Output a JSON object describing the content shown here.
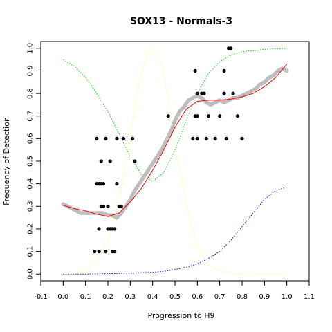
{
  "chart_data": {
    "type": "scatter",
    "title": "SOX13 - Normals-3",
    "xlabel": "Progression to H9",
    "ylabel": "Frequency of Detection",
    "xlim": [
      -0.1,
      1.1
    ],
    "ylim": [
      -0.03,
      1.03
    ],
    "x_ticks": [
      "-0.1",
      "0.0",
      "0.1",
      "0.2",
      "0.3",
      "0.4",
      "0.5",
      "0.6",
      "0.7",
      "0.8",
      "0.9",
      "1.0",
      "1.1"
    ],
    "y_ticks": [
      "0.0",
      "0.1",
      "0.2",
      "0.3",
      "0.4",
      "0.5",
      "0.6",
      "0.7",
      "0.8",
      "0.9",
      "1.0"
    ],
    "grid": false,
    "legend": "none",
    "colors": {
      "points": "#000000",
      "smooth_band": "#bebebe",
      "fit_line": "#ff0000",
      "green_dotted": "#00dd00",
      "yellow_dotted": "#ffff66",
      "blue_dotted": "#0000ff"
    },
    "series": [
      {
        "style": "black-points",
        "x": [
          0.14,
          0.15,
          0.15,
          0.16,
          0.16,
          0.16,
          0.17,
          0.17,
          0.17,
          0.18,
          0.18,
          0.19,
          0.19,
          0.2,
          0.2,
          0.21,
          0.21,
          0.22,
          0.22,
          0.23,
          0.23,
          0.24,
          0.24,
          0.25,
          0.26,
          0.27,
          0.31,
          0.32,
          0.47,
          0.58,
          0.59,
          0.59,
          0.6,
          0.6,
          0.6,
          0.62,
          0.63,
          0.64,
          0.65,
          0.68,
          0.7,
          0.72,
          0.72,
          0.73,
          0.74,
          0.75,
          0.76,
          0.78,
          0.8
        ],
        "y": [
          0.1,
          0.6,
          0.4,
          0.2,
          0.4,
          0.1,
          0.3,
          0.4,
          0.5,
          0.4,
          0.3,
          0.6,
          0.1,
          0.2,
          0.3,
          0.2,
          0.5,
          0.2,
          0.1,
          0.2,
          0.1,
          0.4,
          0.6,
          0.3,
          0.3,
          0.6,
          0.6,
          0.5,
          0.7,
          0.6,
          0.7,
          0.9,
          0.6,
          0.8,
          0.7,
          0.8,
          0.8,
          0.6,
          0.7,
          0.6,
          0.7,
          0.9,
          0.8,
          0.6,
          1.0,
          1.0,
          0.8,
          0.7,
          0.6
        ]
      },
      {
        "style": "grey-smooth",
        "x": [
          0.0,
          0.02,
          0.04,
          0.06,
          0.08,
          0.1,
          0.12,
          0.14,
          0.16,
          0.18,
          0.2,
          0.22,
          0.24,
          0.26,
          0.28,
          0.3,
          0.32,
          0.34,
          0.36,
          0.38,
          0.4,
          0.42,
          0.44,
          0.46,
          0.48,
          0.5,
          0.52,
          0.54,
          0.56,
          0.58,
          0.6,
          0.62,
          0.64,
          0.66,
          0.68,
          0.7,
          0.72,
          0.74,
          0.76,
          0.78,
          0.8,
          0.82,
          0.84,
          0.86,
          0.88,
          0.9,
          0.92,
          0.94,
          0.96,
          0.98,
          1.0
        ],
        "y": [
          0.31,
          0.3,
          0.29,
          0.28,
          0.27,
          0.27,
          0.27,
          0.27,
          0.27,
          0.27,
          0.26,
          0.26,
          0.25,
          0.27,
          0.3,
          0.33,
          0.37,
          0.4,
          0.43,
          0.46,
          0.49,
          0.52,
          0.55,
          0.59,
          0.63,
          0.68,
          0.72,
          0.74,
          0.77,
          0.78,
          0.79,
          0.78,
          0.76,
          0.75,
          0.76,
          0.77,
          0.76,
          0.77,
          0.78,
          0.78,
          0.79,
          0.8,
          0.81,
          0.82,
          0.84,
          0.85,
          0.87,
          0.88,
          0.9,
          0.91,
          0.9
        ]
      },
      {
        "style": "red-fit",
        "x": [
          0.0,
          0.05,
          0.1,
          0.15,
          0.2,
          0.25,
          0.3,
          0.35,
          0.4,
          0.45,
          0.5,
          0.55,
          0.6,
          0.65,
          0.7,
          0.75,
          0.8,
          0.85,
          0.9,
          0.95,
          1.0
        ],
        "y": [
          0.305,
          0.29,
          0.28,
          0.265,
          0.255,
          0.27,
          0.32,
          0.38,
          0.46,
          0.55,
          0.65,
          0.73,
          0.765,
          0.77,
          0.77,
          0.775,
          0.785,
          0.8,
          0.83,
          0.87,
          0.93
        ]
      },
      {
        "style": "green-dotted",
        "x": [
          0.0,
          0.05,
          0.1,
          0.15,
          0.2,
          0.25,
          0.3,
          0.35,
          0.4,
          0.45,
          0.5,
          0.55,
          0.6,
          0.65,
          0.7,
          0.75,
          0.8,
          0.85,
          0.9,
          0.95,
          1.0
        ],
        "y": [
          0.95,
          0.92,
          0.87,
          0.8,
          0.72,
          0.62,
          0.52,
          0.44,
          0.41,
          0.45,
          0.55,
          0.68,
          0.8,
          0.89,
          0.94,
          0.97,
          0.985,
          0.99,
          0.995,
          0.998,
          1.0
        ]
      },
      {
        "style": "yellow-dotted",
        "x": [
          0.0,
          0.05,
          0.1,
          0.15,
          0.2,
          0.25,
          0.3,
          0.33,
          0.36,
          0.38,
          0.4,
          0.42,
          0.44,
          0.47,
          0.5,
          0.55,
          0.6,
          0.65,
          0.7,
          0.75,
          0.8,
          0.9,
          1.0
        ],
        "y": [
          0.0,
          0.005,
          0.02,
          0.06,
          0.15,
          0.33,
          0.62,
          0.8,
          0.93,
          0.98,
          1.0,
          0.98,
          0.92,
          0.78,
          0.58,
          0.3,
          0.12,
          0.04,
          0.015,
          0.005,
          0.002,
          0.0,
          0.0
        ]
      },
      {
        "style": "blue-dotted",
        "x": [
          0.0,
          0.1,
          0.2,
          0.3,
          0.4,
          0.45,
          0.5,
          0.55,
          0.6,
          0.65,
          0.7,
          0.75,
          0.8,
          0.85,
          0.9,
          0.95,
          1.0
        ],
        "y": [
          0.0,
          0.0,
          0.002,
          0.004,
          0.008,
          0.012,
          0.02,
          0.03,
          0.045,
          0.07,
          0.1,
          0.15,
          0.21,
          0.27,
          0.33,
          0.37,
          0.385
        ]
      }
    ]
  }
}
